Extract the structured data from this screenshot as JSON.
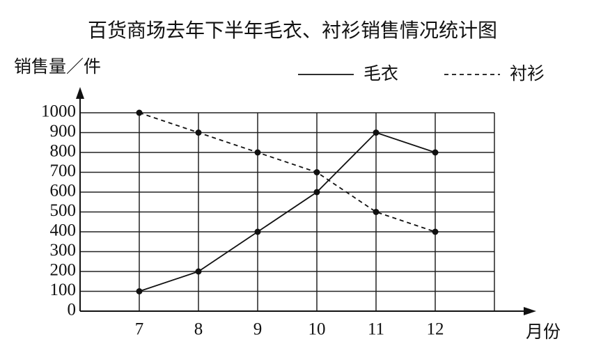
{
  "chart_data": {
    "type": "line",
    "title": "百货商场去年下半年毛衣、衬衫销售情况统计图",
    "y_label": "销售量／件",
    "x_label": "月份",
    "x": [
      7,
      8,
      9,
      10,
      11,
      12
    ],
    "xlim": [
      6,
      13
    ],
    "xticks": [
      7,
      8,
      9,
      10,
      11,
      12
    ],
    "ylim": [
      0,
      1000
    ],
    "yticks": [
      0,
      100,
      200,
      300,
      400,
      500,
      600,
      700,
      800,
      900,
      1000
    ],
    "grid": true,
    "legend": "upper right",
    "series": [
      {
        "name": "毛衣",
        "color": "#111111",
        "line_style": "solid",
        "values": [
          100,
          200,
          400,
          600,
          900,
          800
        ]
      },
      {
        "name": "衬衫",
        "color": "#111111",
        "line_style": "dashed",
        "values": [
          1000,
          900,
          800,
          700,
          500,
          400
        ]
      }
    ]
  }
}
